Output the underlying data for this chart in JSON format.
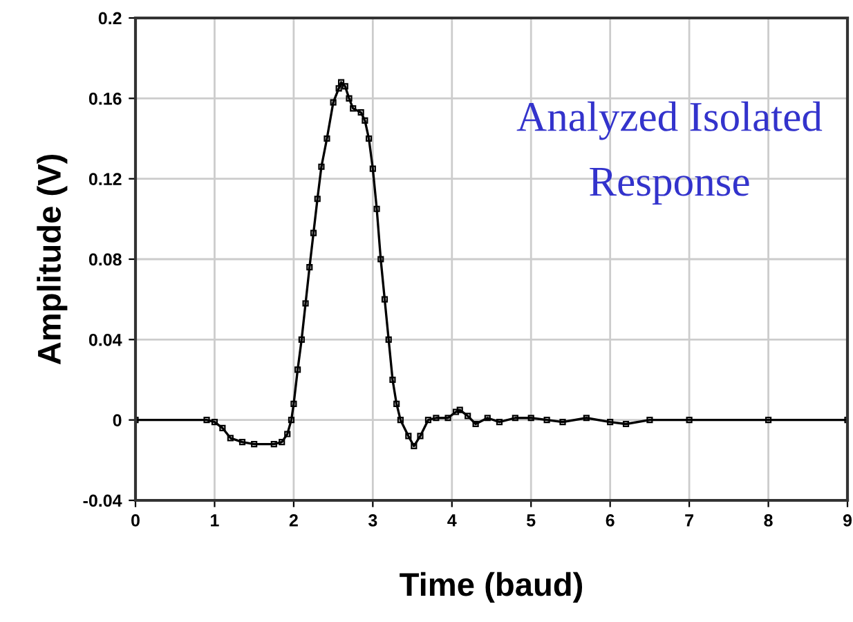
{
  "chart_data": {
    "type": "line",
    "xlabel": "Time (baud)",
    "ylabel": "Amplitude (V)",
    "annotations": [
      "Analyzed Isolated\nResponse"
    ],
    "xlim": [
      0,
      9
    ],
    "xticks": [
      0,
      1,
      2,
      3,
      4,
      5,
      6,
      7,
      8,
      9
    ],
    "ylim": [
      -0.04,
      0.2
    ],
    "yticks": [
      -0.04,
      0,
      0.04,
      0.08,
      0.12,
      0.16,
      0.2
    ],
    "grid": true,
    "marker": "square",
    "line_style": "solid",
    "series": [
      {
        "color": "#000000",
        "x": [
          0,
          0.9,
          1.0,
          1.1,
          1.2,
          1.35,
          1.5,
          1.75,
          1.85,
          1.92,
          1.97,
          2.0,
          2.05,
          2.1,
          2.15,
          2.2,
          2.25,
          2.3,
          2.35,
          2.42,
          2.5,
          2.57,
          2.6,
          2.65,
          2.7,
          2.75,
          2.85,
          2.9,
          2.95,
          3.0,
          3.05,
          3.1,
          3.15,
          3.2,
          3.25,
          3.3,
          3.35,
          3.45,
          3.52,
          3.6,
          3.7,
          3.8,
          3.95,
          4.05,
          4.1,
          4.2,
          4.3,
          4.45,
          4.6,
          4.8,
          5.0,
          5.2,
          5.4,
          5.7,
          6.0,
          6.2,
          6.5,
          7,
          8,
          9
        ],
        "values": [
          0,
          0,
          -0.001,
          -0.004,
          -0.009,
          -0.011,
          -0.012,
          -0.012,
          -0.011,
          -0.007,
          0,
          0.008,
          0.025,
          0.04,
          0.058,
          0.076,
          0.093,
          0.11,
          0.126,
          0.14,
          0.158,
          0.165,
          0.168,
          0.166,
          0.16,
          0.155,
          0.153,
          0.149,
          0.14,
          0.125,
          0.105,
          0.08,
          0.06,
          0.04,
          0.02,
          0.008,
          0.0,
          -0.008,
          -0.013,
          -0.008,
          0.0,
          0.001,
          0.001,
          0.004,
          0.005,
          0.002,
          -0.002,
          0.001,
          -0.001,
          0.001,
          0.001,
          0,
          -0.001,
          0.001,
          -0.001,
          -0.002,
          0,
          0,
          0,
          0
        ]
      }
    ]
  }
}
